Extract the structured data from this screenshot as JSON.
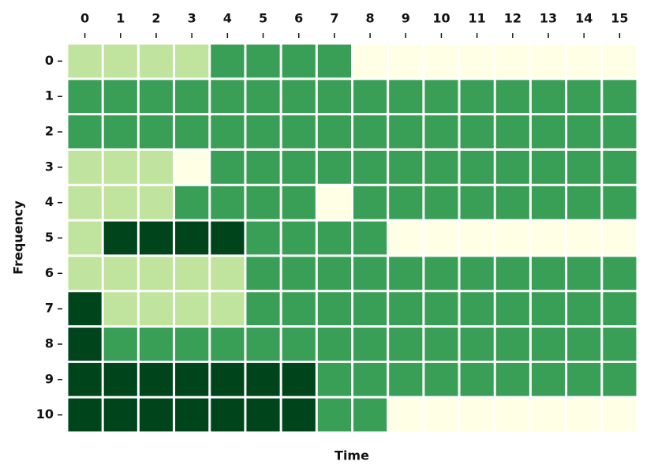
{
  "chart_data": {
    "type": "heatmap",
    "x_label": "Time",
    "y_label": "Frequency",
    "x_categories": [
      0,
      1,
      2,
      3,
      4,
      5,
      6,
      7,
      8,
      9,
      10,
      11,
      12,
      13,
      14,
      15
    ],
    "y_categories": [
      0,
      1,
      2,
      3,
      4,
      5,
      6,
      7,
      8,
      9,
      10
    ],
    "colors": [
      "#ffffe5",
      "#c0e39d",
      "#3a9f56",
      "#00441b"
    ],
    "z": [
      [
        1,
        1,
        1,
        1,
        2,
        2,
        2,
        2,
        0,
        0,
        0,
        0,
        0,
        0,
        0,
        0
      ],
      [
        2,
        2,
        2,
        2,
        2,
        2,
        2,
        2,
        2,
        2,
        2,
        2,
        2,
        2,
        2,
        2
      ],
      [
        2,
        2,
        2,
        2,
        2,
        2,
        2,
        2,
        2,
        2,
        2,
        2,
        2,
        2,
        2,
        2
      ],
      [
        1,
        1,
        1,
        0,
        2,
        2,
        2,
        2,
        2,
        2,
        2,
        2,
        2,
        2,
        2,
        2
      ],
      [
        1,
        1,
        1,
        2,
        2,
        2,
        2,
        0,
        2,
        2,
        2,
        2,
        2,
        2,
        2,
        2
      ],
      [
        1,
        3,
        3,
        3,
        3,
        2,
        2,
        2,
        2,
        0,
        0,
        0,
        0,
        0,
        0,
        0
      ],
      [
        1,
        1,
        1,
        1,
        1,
        2,
        2,
        2,
        2,
        2,
        2,
        2,
        2,
        2,
        2,
        2
      ],
      [
        3,
        1,
        1,
        1,
        1,
        2,
        2,
        2,
        2,
        2,
        2,
        2,
        2,
        2,
        2,
        2
      ],
      [
        3,
        2,
        2,
        2,
        2,
        2,
        2,
        2,
        2,
        2,
        2,
        2,
        2,
        2,
        2,
        2
      ],
      [
        3,
        3,
        3,
        3,
        3,
        3,
        3,
        2,
        2,
        2,
        2,
        2,
        2,
        2,
        2,
        2
      ],
      [
        3,
        3,
        3,
        3,
        3,
        3,
        3,
        2,
        2,
        0,
        0,
        0,
        0,
        0,
        0,
        0
      ]
    ]
  }
}
